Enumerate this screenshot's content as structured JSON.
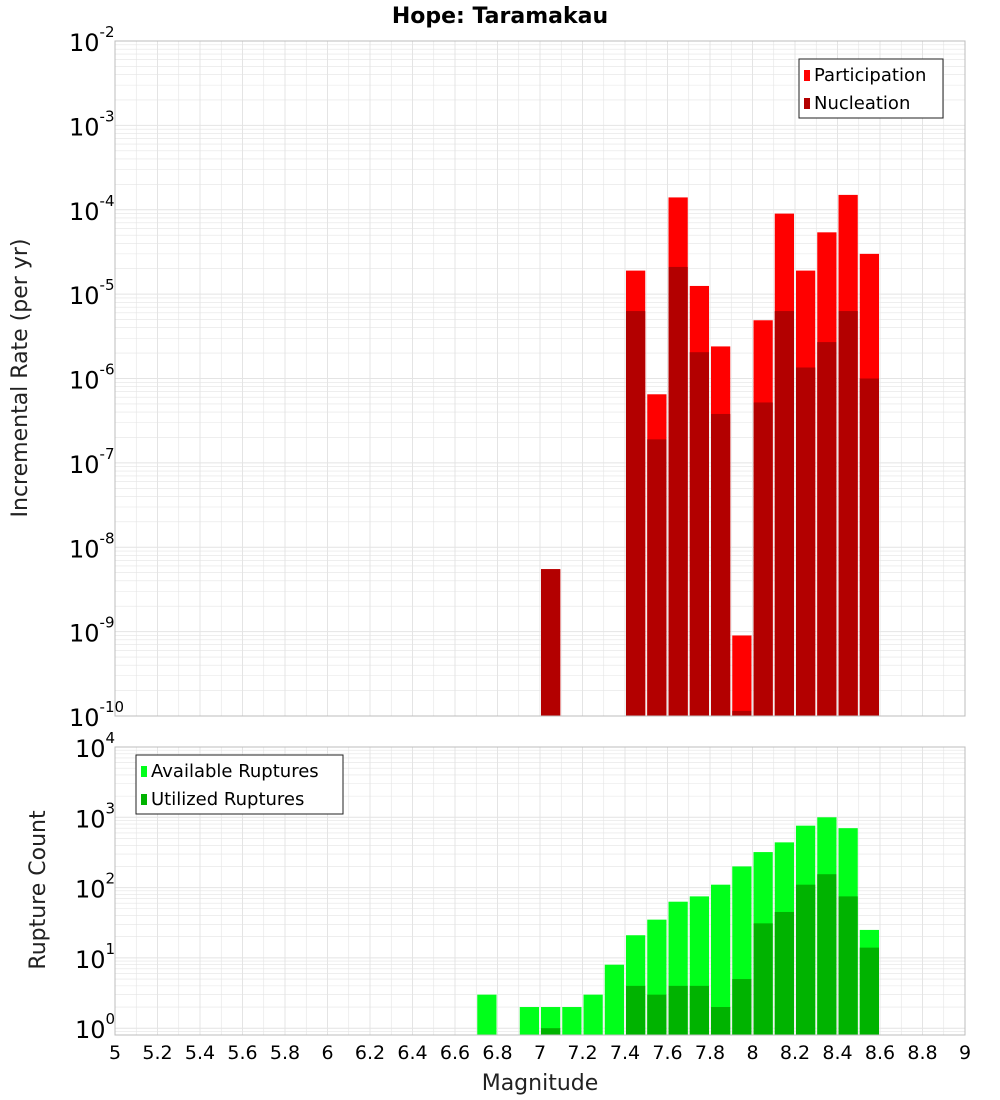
{
  "title": "Hope: Taramakau",
  "colors": {
    "participation": "#ff0000",
    "nucleation": "#b30000",
    "available": "#00ff1a",
    "utilized": "#00b300",
    "grid": "#e4e4e4",
    "frame": "#bcbcbc"
  },
  "chart_data": [
    {
      "type": "bar",
      "yscale": "log",
      "xlabel": "",
      "ylabel": "Incremental Rate (per yr)",
      "xlim": [
        5,
        9
      ],
      "ylim": [
        1e-10,
        0.01
      ],
      "ytick_exponents": [
        -2,
        -3,
        -4,
        -5,
        -6,
        -7,
        -8,
        -9,
        -10
      ],
      "legend_position": "top-right",
      "x": [
        7.05,
        7.45,
        7.55,
        7.65,
        7.75,
        7.85,
        7.95,
        8.05,
        8.15,
        8.25,
        8.35,
        8.45,
        8.55
      ],
      "series": [
        {
          "name": "Participation",
          "values": [
            5.5e-09,
            1.9e-05,
            6.5e-07,
            0.00014,
            1.25e-05,
            2.4e-06,
            9e-10,
            4.9e-06,
            9e-05,
            1.9e-05,
            5.4e-05,
            0.00015,
            3e-05
          ]
        },
        {
          "name": "Nucleation",
          "values": [
            5.5e-09,
            6.3e-06,
            1.9e-07,
            2.1e-05,
            2.05e-06,
            3.8e-07,
            1.15e-10,
            5.2e-07,
            6.3e-06,
            1.35e-06,
            2.7e-06,
            6.3e-06,
            1e-06
          ]
        }
      ]
    },
    {
      "type": "bar",
      "yscale": "log",
      "xlabel": "Magnitude",
      "ylabel": "Rupture Count",
      "xlim": [
        5,
        9
      ],
      "ylim": [
        0.8,
        10000.0
      ],
      "ytick_exponents": [
        4,
        3,
        2,
        1,
        0
      ],
      "xticks": [
        "5",
        "5.2",
        "5.4",
        "5.6",
        "5.8",
        "6",
        "6.2",
        "6.4",
        "6.6",
        "6.8",
        "7",
        "7.2",
        "7.4",
        "7.6",
        "7.8",
        "8",
        "8.2",
        "8.4",
        "8.6",
        "8.8",
        "9"
      ],
      "legend_position": "top-left",
      "x": [
        6.75,
        6.95,
        7.05,
        7.15,
        7.25,
        7.35,
        7.45,
        7.55,
        7.65,
        7.75,
        7.85,
        7.95,
        8.05,
        8.15,
        8.25,
        8.35,
        8.45,
        8.55
      ],
      "series": [
        {
          "name": "Available Ruptures",
          "values": [
            3,
            2,
            2,
            2,
            3,
            8,
            21,
            35,
            63,
            75,
            110,
            200,
            320,
            440,
            760,
            1000,
            700,
            25
          ]
        },
        {
          "name": "Utilized Ruptures",
          "values": [
            0,
            0,
            1,
            0,
            0,
            0,
            4,
            3,
            4,
            4,
            2,
            5,
            31,
            45,
            110,
            155,
            75,
            14
          ]
        }
      ]
    }
  ]
}
